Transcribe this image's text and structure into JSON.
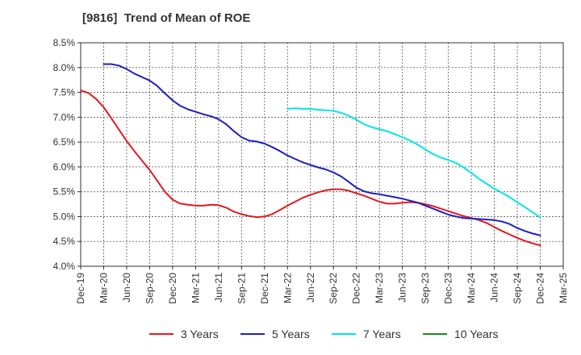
{
  "chart_data": {
    "type": "line",
    "title": "[9816]  Trend of Mean of ROE",
    "xlabel": "",
    "ylabel": "",
    "ylim": [
      4.0,
      8.5
    ],
    "y_ticks": [
      "4.0%",
      "4.5%",
      "5.0%",
      "5.5%",
      "6.0%",
      "6.5%",
      "7.0%",
      "7.5%",
      "8.0%",
      "8.5%"
    ],
    "x_tick_labels": [
      "Dec-19",
      "Mar-20",
      "Jun-20",
      "Sep-20",
      "Dec-20",
      "Mar-21",
      "Jun-21",
      "Sep-21",
      "Dec-21",
      "Mar-22",
      "Jun-22",
      "Sep-22",
      "Dec-22",
      "Mar-23",
      "Jun-23",
      "Sep-23",
      "Dec-23",
      "Mar-24",
      "Jun-24",
      "Sep-24",
      "Dec-24",
      "Mar-25"
    ],
    "grid": true,
    "legend_position": "bottom",
    "series": [
      {
        "name": "3 Years",
        "color": "#e31a1c",
        "points": [
          [
            "Dec-19",
            7.54
          ],
          [
            "Jan-20",
            7.49
          ],
          [
            "Feb-20",
            7.37
          ],
          [
            "Mar-20",
            7.2
          ],
          [
            "Apr-20",
            6.98
          ],
          [
            "May-20",
            6.75
          ],
          [
            "Jun-20",
            6.52
          ],
          [
            "Jul-20",
            6.32
          ],
          [
            "Aug-20",
            6.13
          ],
          [
            "Sep-20",
            5.94
          ],
          [
            "Oct-20",
            5.72
          ],
          [
            "Nov-20",
            5.5
          ],
          [
            "Dec-20",
            5.34
          ],
          [
            "Jan-21",
            5.26
          ],
          [
            "Feb-21",
            5.24
          ],
          [
            "Mar-21",
            5.22
          ],
          [
            "Apr-21",
            5.22
          ],
          [
            "May-21",
            5.24
          ],
          [
            "Jun-21",
            5.23
          ],
          [
            "Jul-21",
            5.18
          ],
          [
            "Aug-21",
            5.1
          ],
          [
            "Sep-21",
            5.05
          ],
          [
            "Oct-21",
            5.01
          ],
          [
            "Nov-21",
            4.99
          ],
          [
            "Dec-21",
            5.0
          ],
          [
            "Jan-22",
            5.05
          ],
          [
            "Feb-22",
            5.13
          ],
          [
            "Mar-22",
            5.22
          ],
          [
            "Apr-22",
            5.3
          ],
          [
            "May-22",
            5.38
          ],
          [
            "Jun-22",
            5.44
          ],
          [
            "Jul-22",
            5.49
          ],
          [
            "Aug-22",
            5.53
          ],
          [
            "Sep-22",
            5.55
          ],
          [
            "Oct-22",
            5.55
          ],
          [
            "Nov-22",
            5.52
          ],
          [
            "Dec-22",
            5.47
          ],
          [
            "Jan-23",
            5.42
          ],
          [
            "Feb-23",
            5.36
          ],
          [
            "Mar-23",
            5.3
          ],
          [
            "Apr-23",
            5.26
          ],
          [
            "May-23",
            5.26
          ],
          [
            "Jun-23",
            5.28
          ],
          [
            "Jul-23",
            5.29
          ],
          [
            "Aug-23",
            5.28
          ],
          [
            "Sep-23",
            5.25
          ],
          [
            "Oct-23",
            5.21
          ],
          [
            "Nov-23",
            5.16
          ],
          [
            "Dec-23",
            5.11
          ],
          [
            "Jan-24",
            5.06
          ],
          [
            "Feb-24",
            5.01
          ],
          [
            "Mar-24",
            4.97
          ],
          [
            "Apr-24",
            4.93
          ],
          [
            "May-24",
            4.87
          ],
          [
            "Jun-24",
            4.79
          ],
          [
            "Jul-24",
            4.71
          ],
          [
            "Aug-24",
            4.64
          ],
          [
            "Sep-24",
            4.57
          ],
          [
            "Oct-24",
            4.51
          ],
          [
            "Nov-24",
            4.46
          ],
          [
            "Dec-24",
            4.42
          ]
        ]
      },
      {
        "name": "5 Years",
        "color": "#1f1fbf",
        "points": [
          [
            "Mar-20",
            8.07
          ],
          [
            "Apr-20",
            8.07
          ],
          [
            "May-20",
            8.04
          ],
          [
            "Jun-20",
            7.97
          ],
          [
            "Jul-20",
            7.88
          ],
          [
            "Aug-20",
            7.81
          ],
          [
            "Sep-20",
            7.74
          ],
          [
            "Oct-20",
            7.63
          ],
          [
            "Nov-20",
            7.48
          ],
          [
            "Dec-20",
            7.34
          ],
          [
            "Jan-21",
            7.23
          ],
          [
            "Feb-21",
            7.16
          ],
          [
            "Mar-21",
            7.11
          ],
          [
            "Apr-21",
            7.06
          ],
          [
            "May-21",
            7.02
          ],
          [
            "Jun-21",
            6.96
          ],
          [
            "Jul-21",
            6.86
          ],
          [
            "Aug-21",
            6.72
          ],
          [
            "Sep-21",
            6.6
          ],
          [
            "Oct-21",
            6.53
          ],
          [
            "Nov-21",
            6.51
          ],
          [
            "Dec-21",
            6.47
          ],
          [
            "Jan-22",
            6.4
          ],
          [
            "Feb-22",
            6.32
          ],
          [
            "Mar-22",
            6.23
          ],
          [
            "Apr-22",
            6.16
          ],
          [
            "May-22",
            6.09
          ],
          [
            "Jun-22",
            6.04
          ],
          [
            "Jul-22",
            5.99
          ],
          [
            "Aug-22",
            5.95
          ],
          [
            "Sep-22",
            5.89
          ],
          [
            "Oct-22",
            5.81
          ],
          [
            "Nov-22",
            5.7
          ],
          [
            "Dec-22",
            5.58
          ],
          [
            "Jan-23",
            5.51
          ],
          [
            "Feb-23",
            5.47
          ],
          [
            "Mar-23",
            5.45
          ],
          [
            "Apr-23",
            5.42
          ],
          [
            "May-23",
            5.39
          ],
          [
            "Jun-23",
            5.36
          ],
          [
            "Jul-23",
            5.32
          ],
          [
            "Aug-23",
            5.28
          ],
          [
            "Sep-23",
            5.22
          ],
          [
            "Oct-23",
            5.16
          ],
          [
            "Nov-23",
            5.1
          ],
          [
            "Dec-23",
            5.04
          ],
          [
            "Jan-24",
            5.0
          ],
          [
            "Feb-24",
            4.97
          ],
          [
            "Mar-24",
            4.96
          ],
          [
            "Apr-24",
            4.95
          ],
          [
            "May-24",
            4.94
          ],
          [
            "Jun-24",
            4.93
          ],
          [
            "Jul-24",
            4.9
          ],
          [
            "Aug-24",
            4.85
          ],
          [
            "Sep-24",
            4.77
          ],
          [
            "Oct-24",
            4.71
          ],
          [
            "Nov-24",
            4.66
          ],
          [
            "Dec-24",
            4.62
          ]
        ]
      },
      {
        "name": "7 Years",
        "color": "#00e5e5",
        "points": [
          [
            "Mar-22",
            7.17
          ],
          [
            "Apr-22",
            7.18
          ],
          [
            "May-22",
            7.17
          ],
          [
            "Jun-22",
            7.17
          ],
          [
            "Jul-22",
            7.15
          ],
          [
            "Aug-22",
            7.14
          ],
          [
            "Sep-22",
            7.13
          ],
          [
            "Oct-22",
            7.09
          ],
          [
            "Nov-22",
            7.03
          ],
          [
            "Dec-22",
            6.95
          ],
          [
            "Jan-23",
            6.86
          ],
          [
            "Feb-23",
            6.8
          ],
          [
            "Mar-23",
            6.76
          ],
          [
            "Apr-23",
            6.72
          ],
          [
            "May-23",
            6.66
          ],
          [
            "Jun-23",
            6.6
          ],
          [
            "Jul-23",
            6.53
          ],
          [
            "Aug-23",
            6.45
          ],
          [
            "Sep-23",
            6.35
          ],
          [
            "Oct-23",
            6.26
          ],
          [
            "Nov-23",
            6.19
          ],
          [
            "Dec-23",
            6.14
          ],
          [
            "Jan-24",
            6.08
          ],
          [
            "Feb-24",
            5.99
          ],
          [
            "Mar-24",
            5.88
          ],
          [
            "Apr-24",
            5.76
          ],
          [
            "May-24",
            5.66
          ],
          [
            "Jun-24",
            5.56
          ],
          [
            "Jul-24",
            5.48
          ],
          [
            "Aug-24",
            5.39
          ],
          [
            "Sep-24",
            5.29
          ],
          [
            "Oct-24",
            5.19
          ],
          [
            "Nov-24",
            5.09
          ],
          [
            "Dec-24",
            4.98
          ]
        ]
      },
      {
        "name": "10 Years",
        "color": "#1a8a1a",
        "points": []
      }
    ]
  }
}
